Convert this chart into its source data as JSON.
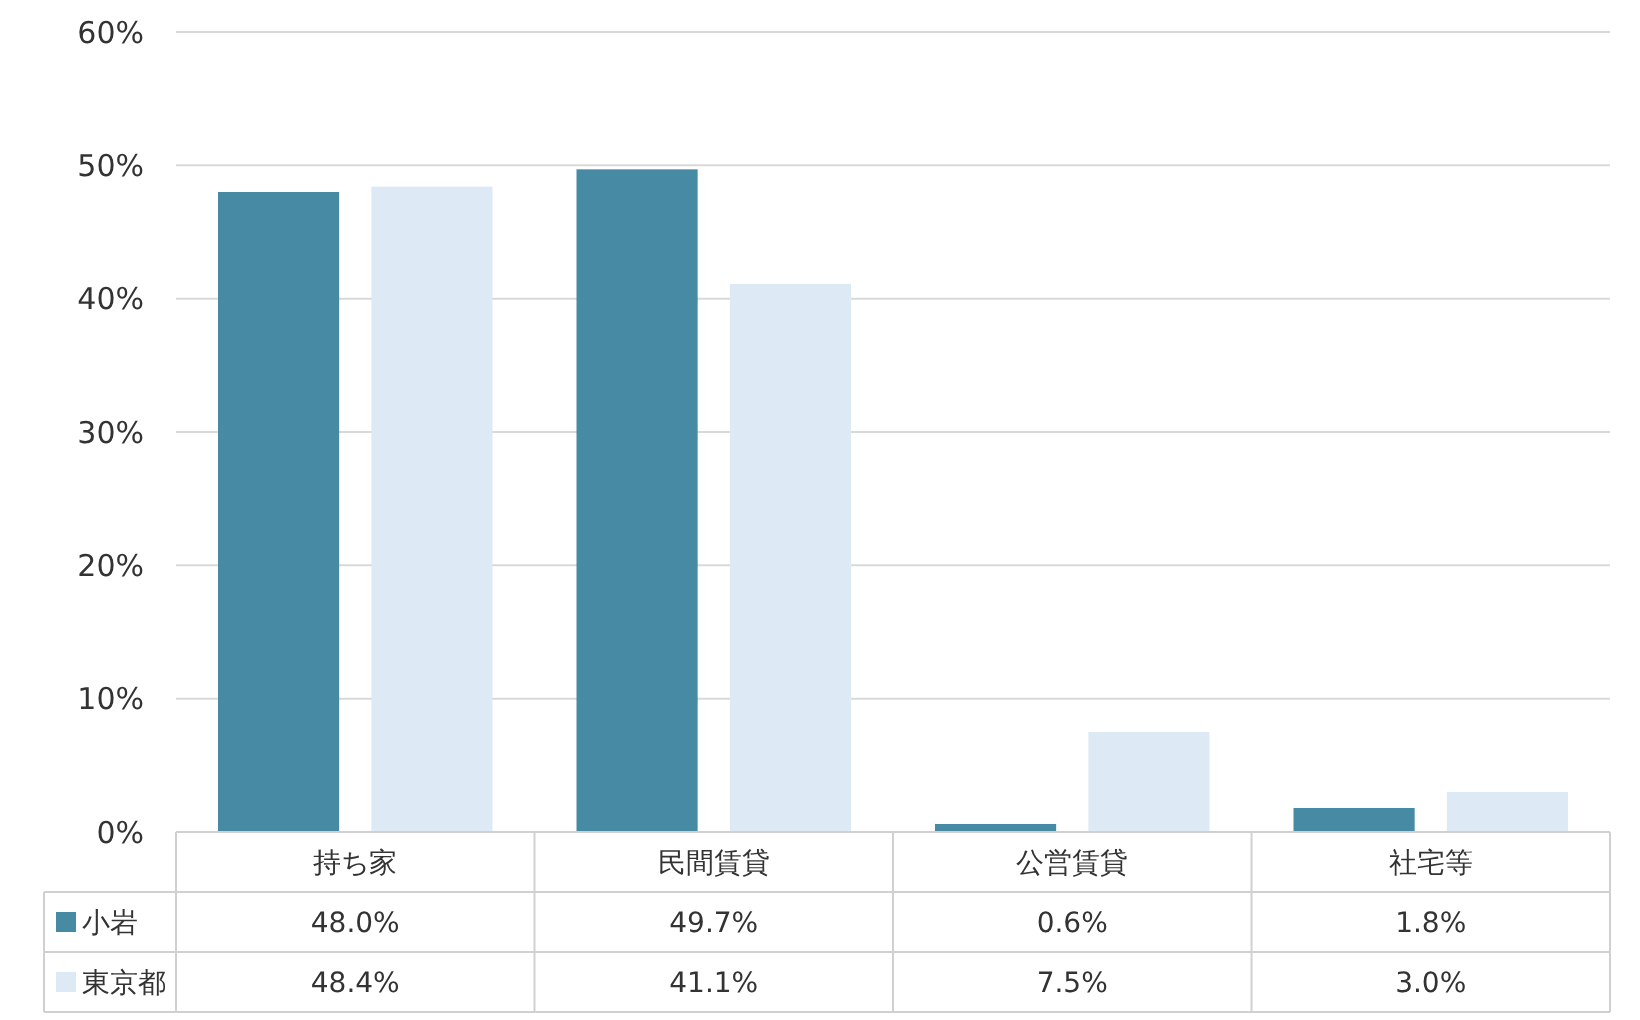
{
  "chart_data": {
    "type": "bar",
    "categories": [
      "持ち家",
      "民間賃貸",
      "公営賃貸",
      "社宅等"
    ],
    "series": [
      {
        "name": "小岩",
        "color": "#468ba3",
        "values": [
          48.0,
          49.7,
          0.6,
          1.8
        ],
        "value_labels": [
          "48.0%",
          "49.7%",
          "0.6%",
          "1.8%"
        ]
      },
      {
        "name": "東京都",
        "color": "#dde9f5",
        "values": [
          48.4,
          41.1,
          7.5,
          3.0
        ],
        "value_labels": [
          "48.4%",
          "41.1%",
          "7.5%",
          "3.0%"
        ]
      }
    ],
    "ylim": [
      0,
      60
    ],
    "yticks": [
      {
        "value": 0,
        "label": "0%"
      },
      {
        "value": 10,
        "label": "10%"
      },
      {
        "value": 20,
        "label": "20%"
      },
      {
        "value": 30,
        "label": "30%"
      },
      {
        "value": 40,
        "label": "40%"
      },
      {
        "value": 50,
        "label": "50%"
      },
      {
        "value": 60,
        "label": "60%"
      }
    ],
    "grid": "y",
    "legend": "bottom left"
  }
}
